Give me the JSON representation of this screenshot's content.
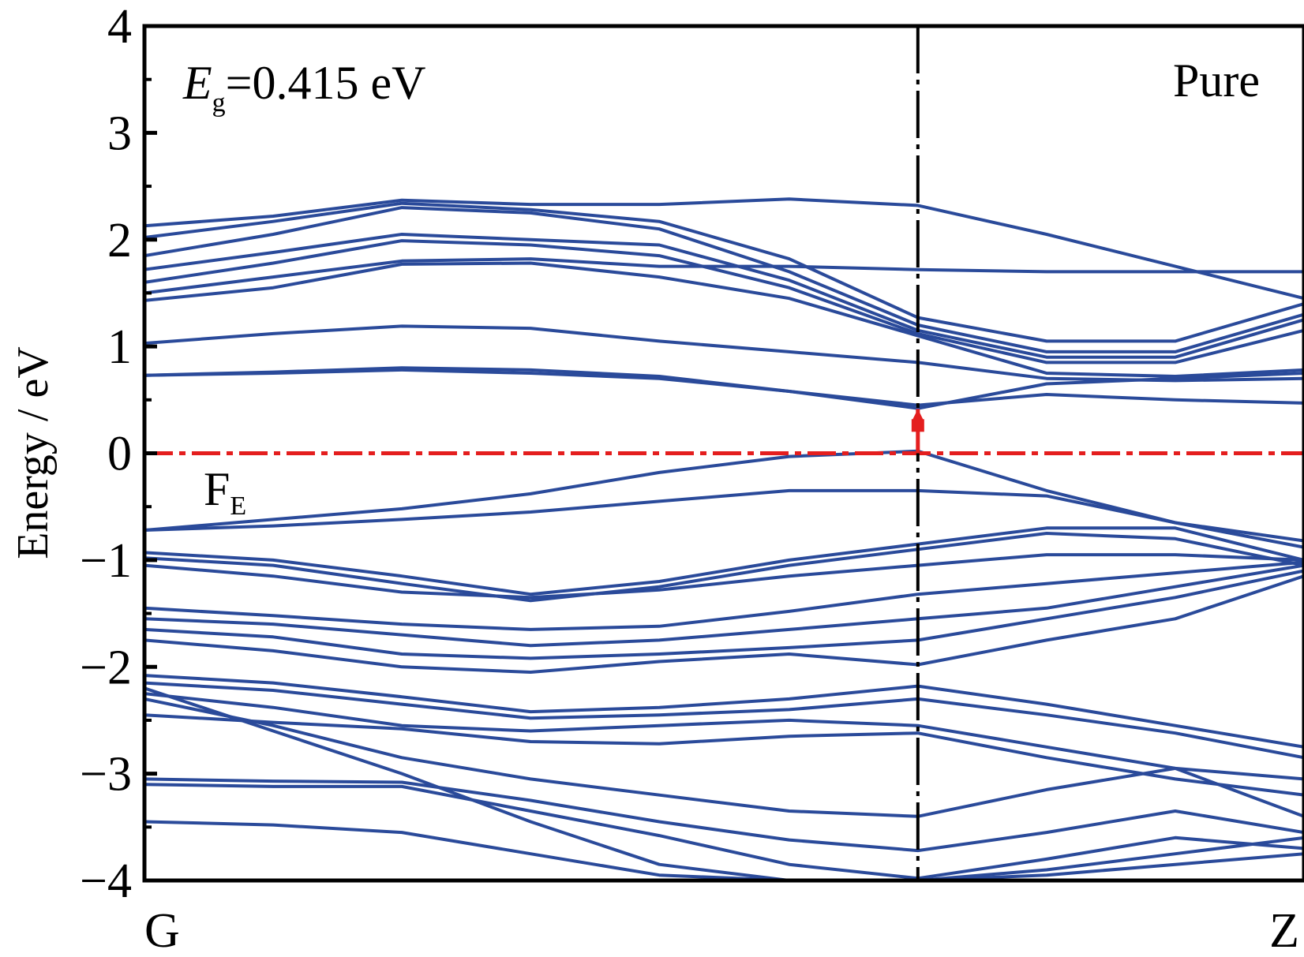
{
  "chart_data": {
    "type": "line",
    "title": "",
    "ylabel": "Energy / eV",
    "xlabel": "",
    "ylim": [
      -4,
      4
    ],
    "y_ticks": [
      4,
      3,
      2,
      1,
      0,
      -1,
      -2,
      -3,
      -4
    ],
    "y_tick_labels": [
      "4",
      "3",
      "2",
      "1",
      "0",
      "−1",
      "−2",
      "−3",
      "−4"
    ],
    "xlim": [
      0,
      1
    ],
    "x_tick_labels": [
      "G",
      "Z"
    ],
    "high_symmetry_x": 0.667,
    "grid": false,
    "annotations": {
      "gap_symbol": "E",
      "gap_subscript": "g",
      "gap_value": "=0.415 eV",
      "panel_label": "Pure",
      "fermi_symbol": "F",
      "fermi_subscript": "E"
    },
    "fermi_level": 0,
    "colors": {
      "bands": "#2a4a9a",
      "fermi": "#e41e1e",
      "frame": "#000000"
    },
    "x": [
      0,
      0.111,
      0.222,
      0.333,
      0.444,
      0.556,
      0.667,
      0.778,
      0.889,
      1.0
    ],
    "series": [
      {
        "values": [
          2.13,
          2.22,
          2.37,
          2.33,
          2.33,
          2.38,
          2.32,
          2.05,
          1.75,
          1.45
        ]
      },
      {
        "values": [
          2.02,
          2.17,
          2.34,
          2.28,
          2.17,
          1.82,
          1.27,
          1.05,
          1.05,
          1.4
        ]
      },
      {
        "values": [
          1.85,
          2.05,
          2.3,
          2.25,
          2.1,
          1.7,
          1.2,
          0.95,
          0.95,
          1.3
        ]
      },
      {
        "values": [
          1.72,
          1.88,
          2.05,
          2.0,
          1.95,
          1.62,
          1.15,
          0.9,
          0.9,
          1.25
        ]
      },
      {
        "values": [
          1.6,
          1.78,
          1.99,
          1.95,
          1.85,
          1.55,
          1.12,
          0.85,
          0.85,
          1.15
        ]
      },
      {
        "values": [
          1.5,
          1.65,
          1.8,
          1.82,
          1.75,
          1.75,
          1.72,
          1.7,
          1.7,
          1.7
        ]
      },
      {
        "values": [
          1.43,
          1.55,
          1.77,
          1.78,
          1.65,
          1.45,
          1.1,
          0.75,
          0.72,
          0.78
        ]
      },
      {
        "values": [
          1.03,
          1.12,
          1.19,
          1.17,
          1.05,
          0.95,
          0.85,
          0.7,
          0.68,
          0.7
        ]
      },
      {
        "values": [
          0.73,
          0.76,
          0.8,
          0.78,
          0.72,
          0.58,
          0.42,
          0.65,
          0.7,
          0.75
        ]
      },
      {
        "values": [
          0.73,
          0.75,
          0.78,
          0.75,
          0.7,
          0.58,
          0.45,
          0.55,
          0.5,
          0.47
        ]
      },
      {
        "values": [
          -0.72,
          -0.62,
          -0.52,
          -0.38,
          -0.18,
          -0.03,
          0.02,
          -0.35,
          -0.65,
          -0.88
        ]
      },
      {
        "values": [
          -0.72,
          -0.68,
          -0.62,
          -0.55,
          -0.45,
          -0.35,
          -0.35,
          -0.4,
          -0.65,
          -0.82
        ]
      },
      {
        "values": [
          -0.93,
          -1.0,
          -1.15,
          -1.32,
          -1.2,
          -1.0,
          -0.85,
          -0.7,
          -0.7,
          -1.0
        ]
      },
      {
        "values": [
          -0.98,
          -1.05,
          -1.22,
          -1.38,
          -1.25,
          -1.05,
          -0.9,
          -0.75,
          -0.8,
          -1.05
        ]
      },
      {
        "values": [
          -1.05,
          -1.15,
          -1.3,
          -1.35,
          -1.28,
          -1.15,
          -1.05,
          -0.95,
          -0.95,
          -1.0
        ]
      },
      {
        "values": [
          -1.45,
          -1.52,
          -1.6,
          -1.65,
          -1.62,
          -1.48,
          -1.32,
          -1.22,
          -1.12,
          -1.02
        ]
      },
      {
        "values": [
          -1.55,
          -1.6,
          -1.7,
          -1.8,
          -1.75,
          -1.65,
          -1.55,
          -1.45,
          -1.25,
          -1.05
        ]
      },
      {
        "values": [
          -1.65,
          -1.72,
          -1.88,
          -1.92,
          -1.88,
          -1.82,
          -1.75,
          -1.55,
          -1.35,
          -1.1
        ]
      },
      {
        "values": [
          -1.75,
          -1.85,
          -2.0,
          -2.05,
          -1.95,
          -1.88,
          -1.98,
          -1.75,
          -1.55,
          -1.15
        ]
      },
      {
        "values": [
          -2.08,
          -2.15,
          -2.28,
          -2.42,
          -2.38,
          -2.3,
          -2.18,
          -2.35,
          -2.55,
          -2.75
        ]
      },
      {
        "values": [
          -2.15,
          -2.22,
          -2.35,
          -2.48,
          -2.45,
          -2.4,
          -2.3,
          -2.45,
          -2.62,
          -2.85
        ]
      },
      {
        "values": [
          -2.25,
          -2.38,
          -2.55,
          -2.6,
          -2.55,
          -2.5,
          -2.55,
          -2.75,
          -2.95,
          -3.05
        ]
      },
      {
        "values": [
          -2.45,
          -2.52,
          -2.58,
          -2.7,
          -2.72,
          -2.65,
          -2.62,
          -2.85,
          -3.05,
          -3.2
        ]
      },
      {
        "values": [
          -2.3,
          -2.55,
          -2.85,
          -3.05,
          -3.2,
          -3.35,
          -3.4,
          -3.15,
          -2.95,
          -3.4
        ]
      },
      {
        "values": [
          -3.05,
          -3.07,
          -3.08,
          -3.25,
          -3.45,
          -3.62,
          -3.72,
          -3.55,
          -3.35,
          -3.55
        ]
      },
      {
        "values": [
          -3.1,
          -3.12,
          -3.12,
          -3.35,
          -3.58,
          -3.85,
          -3.98,
          -3.8,
          -3.6,
          -3.7
        ]
      },
      {
        "values": [
          -3.45,
          -3.48,
          -3.55,
          -3.75,
          -3.95,
          -4.0,
          -4.0,
          -3.95,
          -3.85,
          -3.75
        ]
      },
      {
        "values": [
          -2.2,
          -2.6,
          -3.0,
          -3.45,
          -3.85,
          -4.0,
          -4.0,
          -3.9,
          -3.75,
          -3.6
        ]
      }
    ]
  }
}
